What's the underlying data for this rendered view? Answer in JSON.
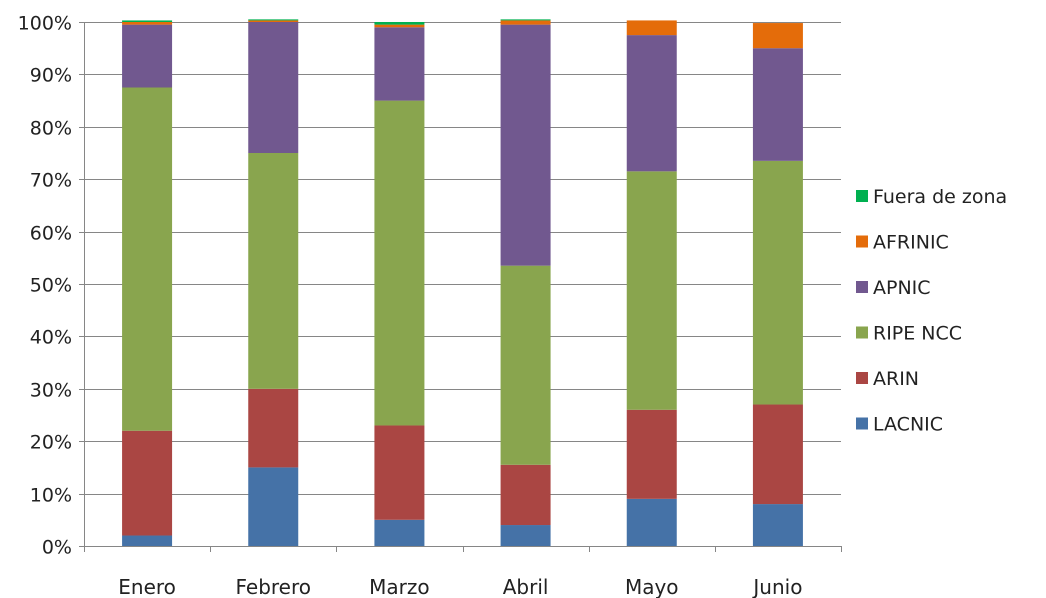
{
  "chart_data": {
    "type": "bar",
    "stacked": true,
    "normalized_percent": true,
    "title": "",
    "xlabel": "",
    "ylabel": "",
    "ylim": [
      0,
      100
    ],
    "yticks": [
      "0%",
      "10%",
      "20%",
      "30%",
      "40%",
      "50%",
      "60%",
      "70%",
      "80%",
      "90%",
      "100%"
    ],
    "grid": true,
    "legend_position": "right",
    "categories": [
      "Enero",
      "Febrero",
      "Marzo",
      "Abril",
      "Mayo",
      "Junio"
    ],
    "series": [
      {
        "name": "LACNIC",
        "color": "#4572A7",
        "values": [
          2,
          15,
          5,
          4,
          9,
          8
        ]
      },
      {
        "name": "ARIN",
        "color": "#AA4643",
        "values": [
          20,
          15,
          18,
          11.5,
          17,
          19
        ]
      },
      {
        "name": "RIPE NCC",
        "color": "#89A54E",
        "values": [
          65.5,
          45,
          62,
          38,
          45.5,
          46.5
        ]
      },
      {
        "name": "APNIC",
        "color": "#71588F",
        "values": [
          12,
          25,
          14,
          46,
          26,
          21.5
        ]
      },
      {
        "name": "AFRINIC",
        "color": "#E46C0A",
        "values": [
          0.5,
          0.3,
          0.5,
          0.8,
          2.8,
          4.8
        ]
      },
      {
        "name": "Fuera de zona",
        "color": "#00B050",
        "values": [
          0.3,
          0.2,
          0.5,
          0.2,
          0.0,
          0.0
        ]
      }
    ]
  }
}
